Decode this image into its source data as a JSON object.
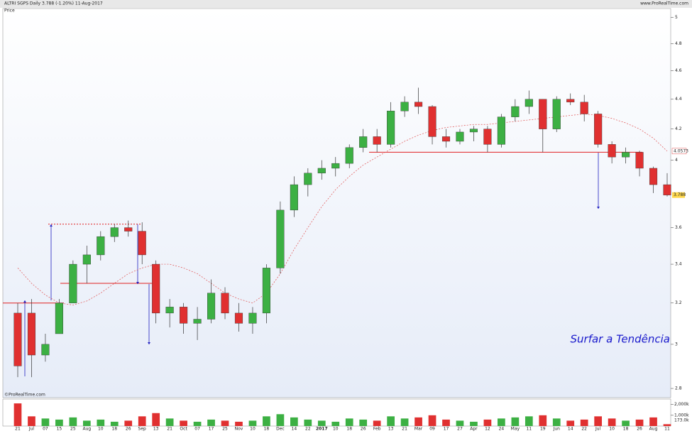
{
  "chart_data": {
    "type": "candlestick",
    "title": "ALTRI SGPS  Daily  3.788 (-1.20%)  11-Aug-2017",
    "subtitle": "Price",
    "source": "www.ProRealTime.com",
    "copyright": "©ProRealTime.com",
    "annotation": "Surfar a Tendência",
    "last_price_label": "3.788",
    "ma_label": "4.0573",
    "log_scale": true,
    "up_color": "#3cb043",
    "down_color": "#e03030",
    "ma_color": "#e05050",
    "level_color": "#e02020",
    "arrow_color": "#2020c0",
    "categories": [
      "21",
      "Jul",
      "07",
      "15",
      "25",
      "Aug",
      "10",
      "18",
      "26",
      "Sep",
      "13",
      "21",
      "Oct",
      "07",
      "17",
      "25",
      "Nov",
      "10",
      "18",
      "Dec",
      "14",
      "22",
      "2017",
      "10",
      "18",
      "26",
      "Feb",
      "13",
      "21",
      "Mar",
      "09",
      "17",
      "27",
      "Apr",
      "12",
      "24",
      "May",
      "11",
      "19",
      "Jun",
      "14",
      "22",
      "Jul",
      "10",
      "18",
      "26",
      "Aug",
      "11"
    ],
    "open": [
      3.15,
      3.15,
      2.95,
      3.05,
      3.2,
      3.4,
      3.45,
      3.55,
      3.6,
      3.58,
      3.4,
      3.15,
      3.18,
      3.1,
      3.12,
      3.25,
      3.15,
      3.1,
      3.15,
      3.38,
      3.7,
      3.85,
      3.92,
      3.95,
      3.98,
      4.08,
      4.15,
      4.1,
      4.32,
      4.38,
      4.35,
      4.15,
      4.12,
      4.18,
      4.2,
      4.1,
      4.28,
      4.35,
      4.4,
      4.2,
      4.4,
      4.38,
      4.3,
      4.1,
      4.02,
      4.05,
      3.95,
      3.85
    ],
    "high": [
      3.2,
      3.22,
      3.05,
      3.22,
      3.42,
      3.5,
      3.58,
      3.62,
      3.64,
      3.63,
      3.42,
      3.22,
      3.2,
      3.18,
      3.32,
      3.28,
      3.2,
      3.18,
      3.4,
      3.75,
      3.9,
      3.95,
      4.0,
      4.02,
      4.1,
      4.2,
      4.2,
      4.38,
      4.42,
      4.48,
      4.36,
      4.2,
      4.2,
      4.22,
      4.22,
      4.3,
      4.4,
      4.46,
      4.4,
      4.42,
      4.44,
      4.43,
      4.32,
      4.12,
      4.08,
      4.06,
      3.96,
      3.92
    ],
    "low": [
      2.85,
      2.85,
      2.92,
      3.05,
      3.2,
      3.3,
      3.42,
      3.52,
      3.55,
      3.4,
      3.1,
      3.08,
      3.05,
      3.02,
      3.1,
      3.12,
      3.06,
      3.05,
      3.1,
      3.35,
      3.66,
      3.78,
      3.88,
      3.9,
      3.95,
      4.05,
      4.05,
      4.08,
      4.28,
      4.3,
      4.1,
      4.08,
      4.1,
      4.12,
      4.05,
      4.08,
      4.25,
      4.3,
      4.05,
      4.18,
      4.36,
      4.25,
      4.08,
      3.98,
      3.98,
      3.9,
      3.8,
      3.78
    ],
    "close": [
      2.9,
      2.95,
      3.0,
      3.2,
      3.4,
      3.45,
      3.55,
      3.6,
      3.58,
      3.45,
      3.15,
      3.18,
      3.1,
      3.12,
      3.25,
      3.15,
      3.1,
      3.15,
      3.38,
      3.7,
      3.85,
      3.92,
      3.95,
      3.98,
      4.08,
      4.15,
      4.1,
      4.32,
      4.38,
      4.35,
      4.15,
      4.12,
      4.18,
      4.2,
      4.1,
      4.28,
      4.35,
      4.4,
      4.2,
      4.4,
      4.38,
      4.3,
      4.1,
      4.02,
      4.05,
      3.95,
      3.85,
      3.788
    ],
    "ma": [
      3.38,
      3.3,
      3.24,
      3.2,
      3.19,
      3.21,
      3.25,
      3.3,
      3.35,
      3.38,
      3.4,
      3.4,
      3.38,
      3.35,
      3.3,
      3.25,
      3.22,
      3.2,
      3.25,
      3.35,
      3.48,
      3.6,
      3.72,
      3.82,
      3.9,
      3.97,
      4.02,
      4.07,
      4.12,
      4.16,
      4.19,
      4.21,
      4.22,
      4.23,
      4.23,
      4.24,
      4.25,
      4.26,
      4.27,
      4.28,
      4.29,
      4.3,
      4.29,
      4.27,
      4.24,
      4.2,
      4.14,
      4.0573
    ],
    "levels": [
      3.2,
      3.3,
      3.62,
      4.05
    ],
    "ylim": [
      2.76,
      5.07
    ],
    "yticks": [
      2.8,
      3,
      3.2,
      3.4,
      3.6,
      4,
      4.2,
      4.4,
      4.6,
      4.8,
      5
    ],
    "volume": {
      "values": [
        2100,
        900,
        700,
        600,
        800,
        500,
        600,
        400,
        500,
        900,
        1200,
        700,
        500,
        400,
        600,
        500,
        400,
        500,
        900,
        1100,
        800,
        600,
        500,
        400,
        700,
        600,
        500,
        900,
        700,
        800,
        1000,
        600,
        500,
        400,
        600,
        700,
        800,
        900,
        1000,
        700,
        500,
        600,
        900,
        700,
        500,
        600,
        800,
        173
      ],
      "ylim": [
        0,
        2500
      ],
      "yticks": [
        {
          "value": 2000,
          "label": "2,000k"
        },
        {
          "value": 1000,
          "label": "1,000k"
        }
      ],
      "last_label": "173.0k"
    }
  }
}
